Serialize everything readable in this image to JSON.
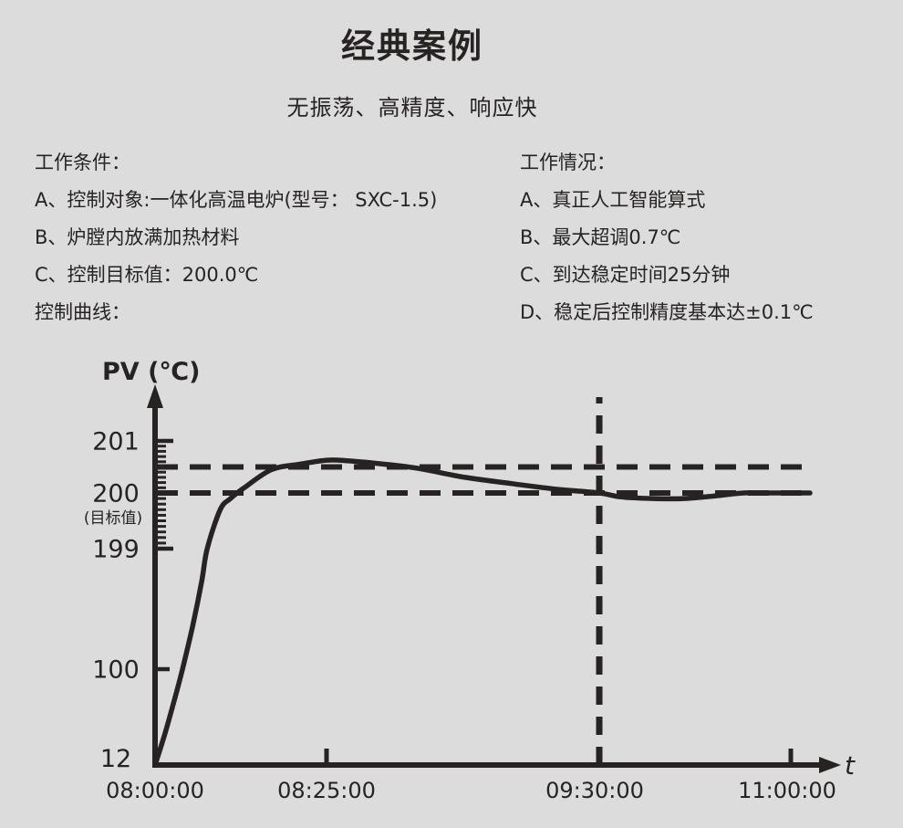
{
  "colors": {
    "background": "#dcdcdc",
    "ink": "#262322"
  },
  "page": {
    "title": "经典案例",
    "subtitle": "无振荡、高精度、响应快"
  },
  "conditions": {
    "heading": "工作条件：",
    "items": [
      "A、控制对象:一体化高温电炉(型号： SXC-1.5)",
      "B、炉膛内放满加热材料",
      "C、控制目标值：200.0℃"
    ],
    "footer": "控制曲线："
  },
  "results": {
    "heading": "工作情况：",
    "items": [
      "A、真正人工智能算式",
      "B、最大超调0.7℃",
      "C、到达稳定时间25分钟",
      "D、稳定后控制精度基本达±0.1℃"
    ]
  },
  "chart_data": {
    "type": "line",
    "title": "控制曲线",
    "x_axis": {
      "label": "t",
      "tick_labels": [
        "08:00:00",
        "08:25:00",
        "09:30:00",
        "11:00:00"
      ],
      "tick_minutes": [
        0,
        25,
        90,
        180
      ],
      "tick_marks_minutes": [
        25,
        180
      ],
      "note": "axis is schematic (non-linear time scale)"
    },
    "y_axis": {
      "label": "PV (℃)",
      "tick_values": [
        201,
        200,
        199,
        100,
        12
      ],
      "target_value": 200.0,
      "target_note": "(目标值)",
      "minor_tick_range": {
        "from": 199,
        "to": 201,
        "step": 0.1
      },
      "note": "axis is schematic (non-linear temperature scale)"
    },
    "reference_lines": [
      {
        "orientation": "horizontal",
        "value": 200.5,
        "style": "dashed"
      },
      {
        "orientation": "horizontal",
        "value": 200.0,
        "style": "dashed",
        "meaning": "target"
      },
      {
        "orientation": "vertical",
        "minutes": 90,
        "time": "09:30:00",
        "style": "dashed",
        "meaning": "stabilized"
      }
    ],
    "series": [
      {
        "name": "PV",
        "points_time_min_temp_c": [
          [
            0,
            12
          ],
          [
            1.5,
            42
          ],
          [
            3,
            76
          ],
          [
            4,
            100
          ],
          [
            5.5,
            136
          ],
          [
            6.8,
            172
          ],
          [
            7.6,
            199
          ],
          [
            9.5,
            199.7
          ],
          [
            11,
            199.9
          ],
          [
            13,
            200.1
          ],
          [
            17,
            200.45
          ],
          [
            21,
            200.55
          ],
          [
            25,
            200.63
          ],
          [
            30,
            200.62
          ],
          [
            38,
            200.56
          ],
          [
            47,
            200.47
          ],
          [
            58,
            200.3
          ],
          [
            70,
            200.17
          ],
          [
            80,
            200.07
          ],
          [
            90,
            200.0
          ],
          [
            100,
            199.93
          ],
          [
            115,
            199.9
          ],
          [
            130,
            199.9
          ],
          [
            145,
            199.95
          ],
          [
            158,
            200.0
          ],
          [
            172,
            200.0
          ],
          [
            189,
            200.0
          ]
        ]
      }
    ],
    "summary": {
      "max_overshoot_c": 0.7,
      "settle_time_min": 25,
      "steady_precision_c": 0.1
    }
  }
}
